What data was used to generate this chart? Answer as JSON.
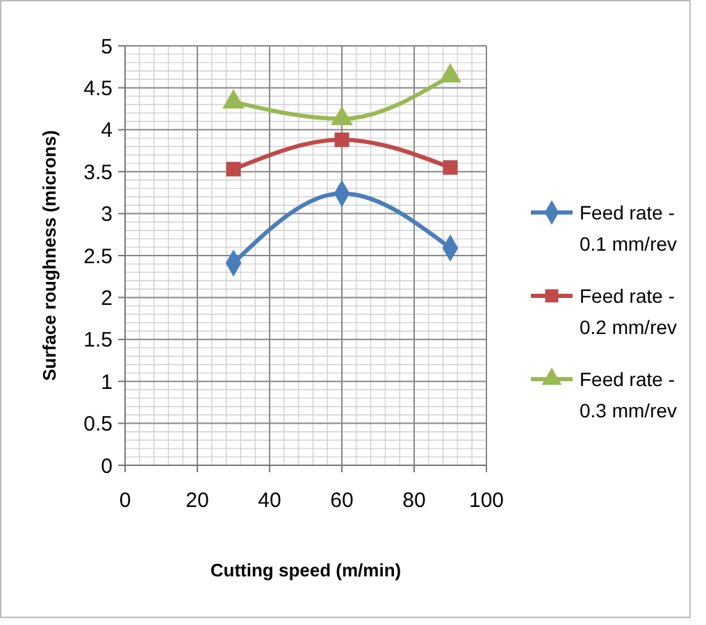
{
  "chart_data": {
    "type": "line",
    "xlabel": "Cutting speed (m/min)",
    "ylabel": "Surface roughness (microns)",
    "xlim": [
      0,
      100
    ],
    "xticks": [
      0,
      20,
      40,
      60,
      80,
      100
    ],
    "ylim": [
      0,
      5
    ],
    "yticks": [
      0,
      0.5,
      1,
      1.5,
      2,
      2.5,
      3,
      3.5,
      4,
      4.5,
      5
    ],
    "grid": true,
    "legend": "right",
    "series": [
      {
        "name": "Feed rate - 0.1 mm/rev",
        "color": "#4a7ebb",
        "marker": "diamond",
        "x": [
          30,
          60,
          90
        ],
        "values": [
          2.41,
          3.24,
          2.59
        ]
      },
      {
        "name": "Feed rate - 0.2 mm/rev",
        "color": "#be4b48",
        "marker": "square",
        "x": [
          30,
          60,
          90
        ],
        "values": [
          3.53,
          3.88,
          3.55
        ]
      },
      {
        "name": "Feed rate - 0.3 mm/rev",
        "color": "#98b954",
        "marker": "triangle",
        "x": [
          30,
          60,
          90
        ],
        "values": [
          4.33,
          4.13,
          4.64
        ]
      }
    ]
  }
}
